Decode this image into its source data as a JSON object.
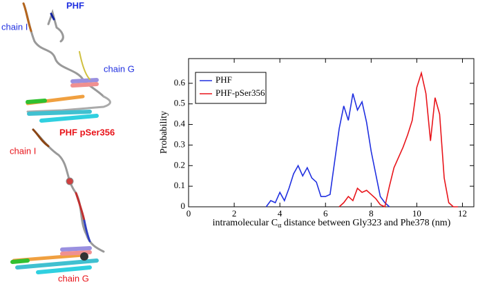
{
  "panel_labels": {
    "top_title": "PHF",
    "top_chain_i": "chain I",
    "top_chain_g": "chain G",
    "bottom_title": "PHF pSer356",
    "bottom_chain_i": "chain I",
    "bottom_chain_g": "chain G"
  },
  "chart_data": {
    "type": "line",
    "y_label": "Probability",
    "x_label": "intramolecular C",
    "x_label_sub": "α",
    "x_label_end": " distance between Gly323 and Phe378 (nm)",
    "xlim": [
      0,
      12.5
    ],
    "ylim": [
      0,
      0.72
    ],
    "xticks": [
      0,
      2,
      4,
      6,
      8,
      10,
      12
    ],
    "yticks": [
      0,
      0.1,
      0.2,
      0.3,
      0.4,
      0.5,
      0.6
    ],
    "legend": "upper left",
    "series": [
      {
        "name": "PHF",
        "color": "#1f2fe0",
        "x": [
          3.4,
          3.6,
          3.8,
          4.0,
          4.2,
          4.4,
          4.6,
          4.8,
          5.0,
          5.2,
          5.4,
          5.6,
          5.8,
          6.0,
          6.2,
          6.4,
          6.6,
          6.8,
          7.0,
          7.2,
          7.4,
          7.6,
          7.8,
          8.0,
          8.2,
          8.4,
          8.6,
          8.8
        ],
        "values": [
          0,
          0.03,
          0.02,
          0.07,
          0.03,
          0.09,
          0.16,
          0.2,
          0.15,
          0.19,
          0.14,
          0.12,
          0.05,
          0.05,
          0.06,
          0.22,
          0.38,
          0.49,
          0.42,
          0.55,
          0.47,
          0.51,
          0.41,
          0.27,
          0.16,
          0.05,
          0.02,
          0
        ]
      },
      {
        "name": "PHF-pSer356",
        "color": "#e8141a",
        "x": [
          6.6,
          6.8,
          7.0,
          7.2,
          7.4,
          7.6,
          7.8,
          8.0,
          8.2,
          8.4,
          8.6,
          8.8,
          9.0,
          9.2,
          9.4,
          9.6,
          9.8,
          10.0,
          10.2,
          10.4,
          10.6,
          10.8,
          11.0,
          11.2,
          11.4,
          11.6,
          11.8
        ],
        "values": [
          0,
          0.02,
          0.05,
          0.03,
          0.09,
          0.07,
          0.08,
          0.06,
          0.04,
          0.01,
          0,
          0.1,
          0.19,
          0.24,
          0.29,
          0.35,
          0.42,
          0.58,
          0.65,
          0.55,
          0.32,
          0.53,
          0.45,
          0.14,
          0.02,
          0,
          0
        ]
      }
    ]
  }
}
